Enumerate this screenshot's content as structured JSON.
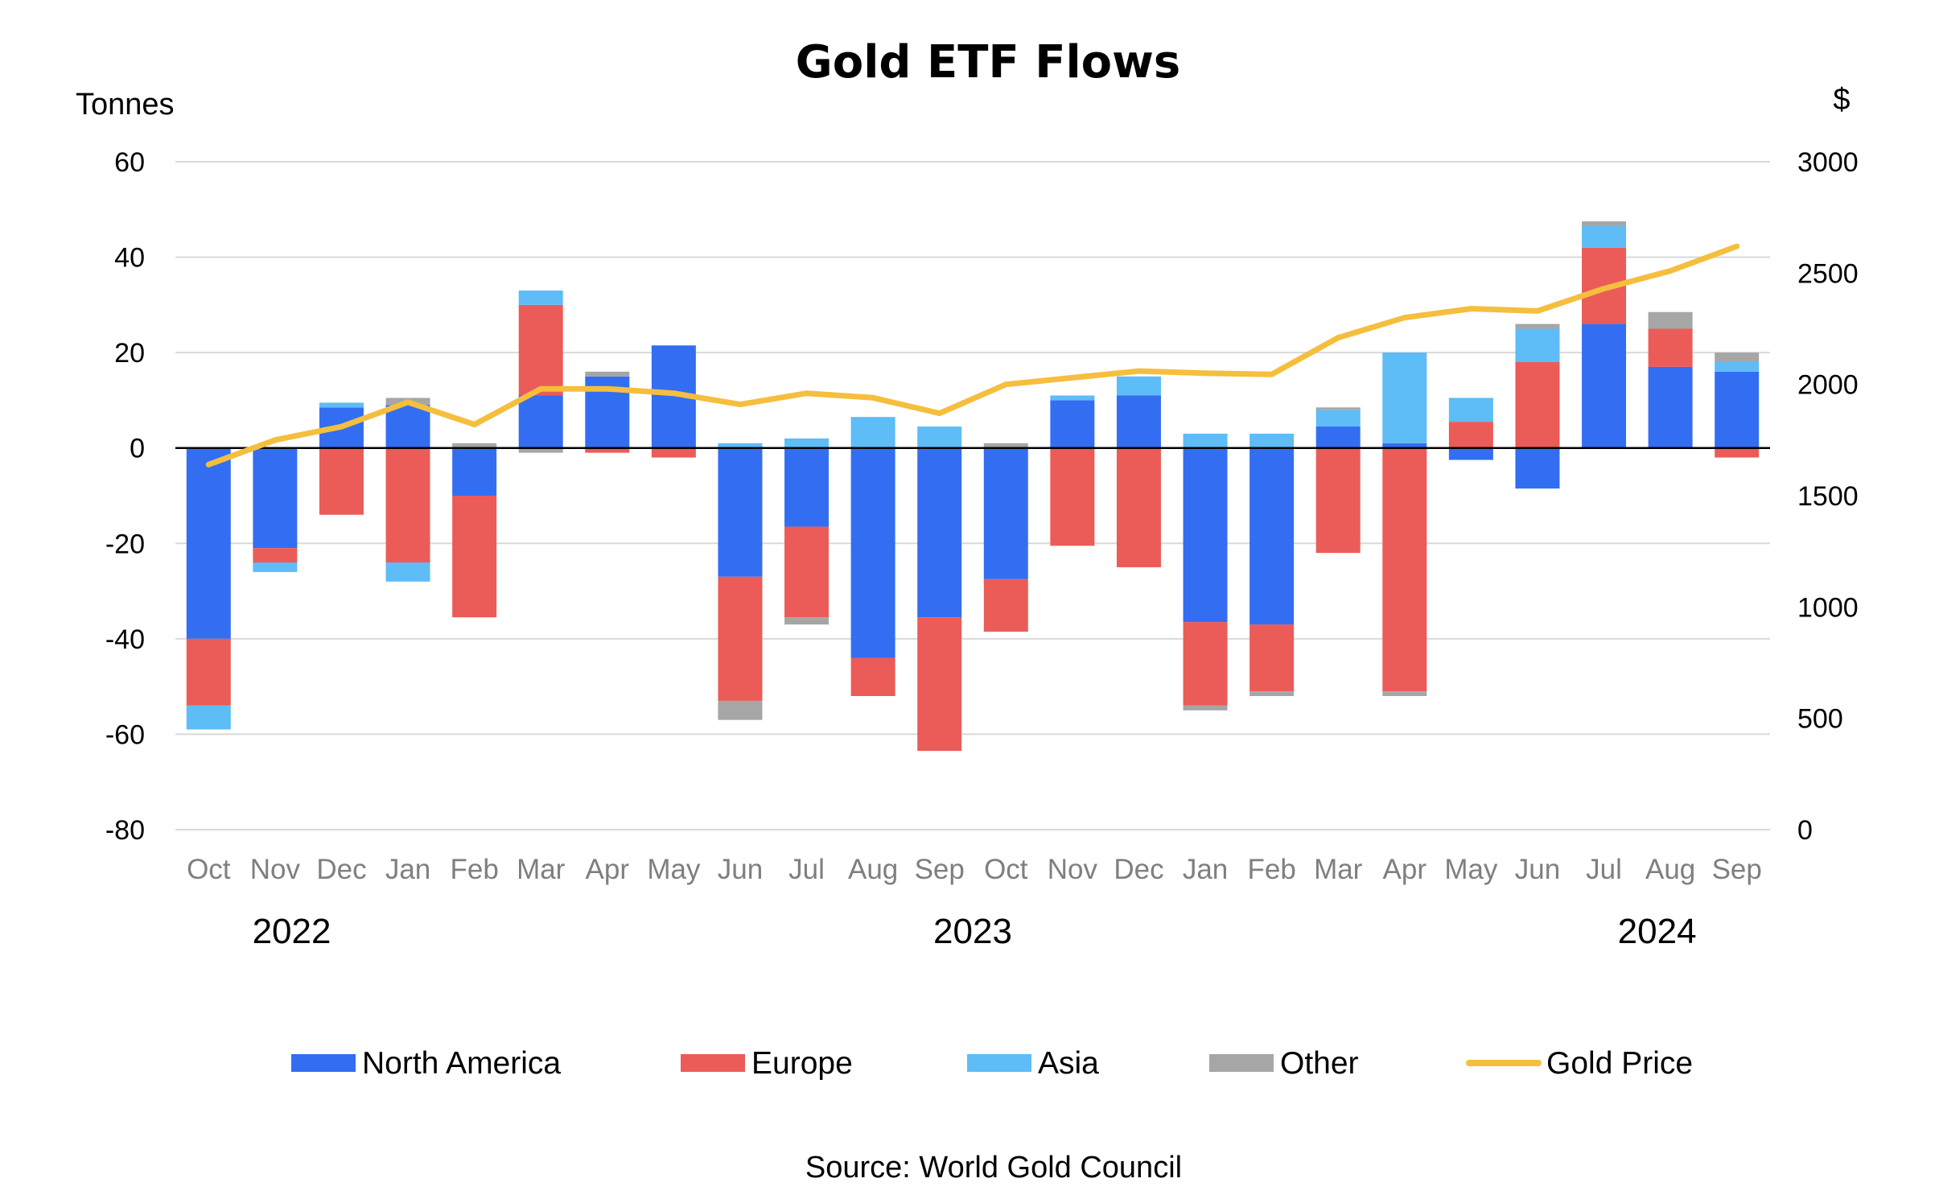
{
  "chart_data": {
    "type": "bar",
    "stacked": true,
    "title": "Gold ETF Flows",
    "y_left_label": "Tonnes",
    "y_right_label": "$",
    "ylim": [
      -80,
      60
    ],
    "y_ticks": [
      60,
      40,
      20,
      0,
      -20,
      -40,
      -60,
      -80
    ],
    "y2lim": [
      0,
      3000
    ],
    "y2_ticks": [
      3000,
      2500,
      2000,
      1500,
      1000,
      500,
      0
    ],
    "categories": [
      "Oct",
      "Nov",
      "Dec",
      "Jan",
      "Feb",
      "Mar",
      "Apr",
      "May",
      "Jun",
      "Jul",
      "Aug",
      "Sep",
      "Oct",
      "Nov",
      "Dec",
      "Jan",
      "Feb",
      "Mar",
      "Apr",
      "May",
      "Jun",
      "Jul",
      "Aug",
      "Sep"
    ],
    "year_labels": [
      {
        "label": "2022",
        "start_index": 0
      },
      {
        "label": "2023",
        "start_index": 3
      },
      {
        "label": "2024",
        "start_index": 15
      }
    ],
    "series": [
      {
        "name": "North America",
        "color": "#336ef2",
        "type": "bar",
        "values": [
          -40,
          -21,
          8.5,
          9,
          -10,
          11,
          15,
          21.5,
          -27,
          -16.5,
          -44,
          -35.5,
          -27.5,
          10,
          11,
          -36.5,
          -37,
          4.5,
          1,
          -2.5,
          -8.5,
          26,
          17,
          16
        ]
      },
      {
        "name": "Europe",
        "color": "#eb5c58",
        "type": "bar",
        "values": [
          -14,
          -3,
          -14,
          -24,
          -25.5,
          19,
          -1,
          -2,
          -26,
          -19,
          -8,
          -28,
          -11,
          -20.5,
          -25,
          -17.5,
          -14,
          -22,
          -51,
          5.5,
          18,
          16,
          8,
          -2
        ]
      },
      {
        "name": "Asia",
        "color": "#5ebcf7",
        "type": "bar",
        "values": [
          -5,
          -2,
          1,
          -4,
          0,
          3,
          0,
          0,
          1,
          2,
          6.5,
          4.5,
          0,
          1,
          4,
          3,
          3,
          3.5,
          19,
          5,
          7,
          4.5,
          0,
          2
        ]
      },
      {
        "name": "Other",
        "color": "#a6a6a6",
        "type": "bar",
        "values": [
          0,
          0,
          0,
          1.5,
          1,
          -1,
          1,
          0,
          -4,
          -1.5,
          0,
          0,
          1,
          0,
          0,
          -1,
          -1,
          0.5,
          -1,
          0,
          1,
          1,
          3.5,
          2
        ]
      },
      {
        "name": "Gold Price",
        "color": "#f5be3d",
        "type": "line",
        "axis": "right",
        "values": [
          1640,
          1750,
          1810,
          1920,
          1820,
          1980,
          1980,
          1960,
          1910,
          1960,
          1940,
          1870,
          2000,
          2030,
          2060,
          2050,
          2045,
          2210,
          2300,
          2340,
          2330,
          2430,
          2510,
          2620
        ]
      }
    ],
    "legend_position": "bottom",
    "grid": true,
    "source": "Source: World Gold Council"
  }
}
